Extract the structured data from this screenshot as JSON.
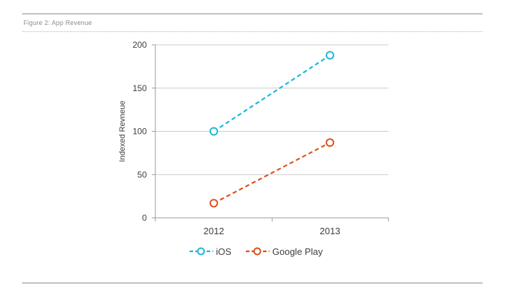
{
  "figure_label": "Figure 2: App Revenue",
  "colors": {
    "ios": "#1cb8d9",
    "google_play": "#e0501b",
    "grid": "#cccccc",
    "rule": "#8a8a8a"
  },
  "chart_data": {
    "type": "line",
    "title": "",
    "xlabel": "",
    "ylabel": "Indexed Revneue",
    "categories": [
      "2012",
      "2013"
    ],
    "ylim": [
      0,
      200
    ],
    "yticks": [
      0,
      50,
      100,
      150,
      200
    ],
    "grid": true,
    "legend_position": "bottom-center",
    "series": [
      {
        "name": "iOS",
        "values": [
          100,
          188
        ],
        "color": "#1cb8d9",
        "style": "dashed",
        "marker": "open-circle"
      },
      {
        "name": "Google Play",
        "values": [
          17,
          87
        ],
        "color": "#e0501b",
        "style": "dashed",
        "marker": "open-circle"
      }
    ]
  }
}
